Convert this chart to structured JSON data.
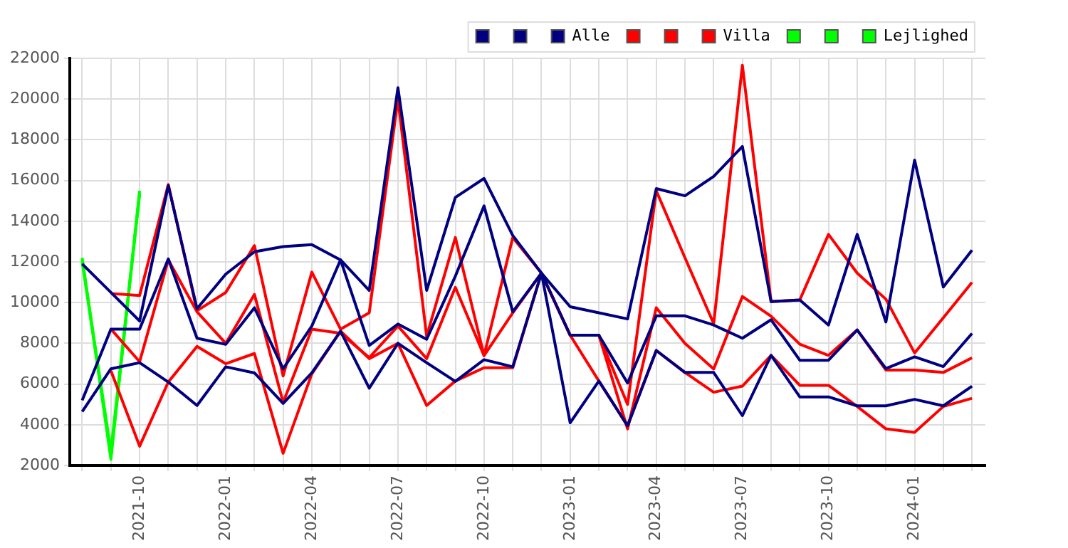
{
  "chart_data": {
    "type": "line",
    "x": [
      "2021-08",
      "2021-09",
      "2021-10",
      "2021-11",
      "2021-12",
      "2022-01",
      "2022-02",
      "2022-03",
      "2022-04",
      "2022-05",
      "2022-06",
      "2022-07",
      "2022-08",
      "2022-09",
      "2022-10",
      "2022-11",
      "2022-12",
      "2023-01",
      "2023-02",
      "2023-03",
      "2023-04",
      "2023-05",
      "2023-06",
      "2023-07",
      "2023-08",
      "2023-09",
      "2023-10",
      "2023-11",
      "2023-12",
      "2024-01",
      "2024-02",
      "2024-03"
    ],
    "series": [
      {
        "color": "#000080",
        "values": [
          11900,
          10500,
          9100,
          15750,
          9700,
          11400,
          12500,
          12750,
          12850,
          12100,
          10600,
          20560,
          10600,
          15170,
          16100,
          13300,
          11450,
          9800,
          9500,
          9200,
          15600,
          15250,
          16200,
          17670,
          10050,
          10130,
          8900,
          13350,
          9050,
          17000,
          10770,
          12580
        ]
      },
      {
        "color": "#000080",
        "values": [
          5200,
          8700,
          8700,
          12150,
          8250,
          7950,
          9750,
          6750,
          8850,
          12100,
          7900,
          8950,
          8200,
          11300,
          14750,
          9550,
          11450,
          8400,
          8400,
          6050,
          9350,
          9350,
          8900,
          8250,
          9160,
          7170,
          7170,
          8660,
          6760,
          7340,
          6860,
          8490
        ]
      },
      {
        "name": "Alle",
        "color": "#000080",
        "values": [
          4650,
          6750,
          7050,
          6100,
          4950,
          6850,
          6550,
          5050,
          6550,
          8600,
          5800,
          8000,
          7050,
          6130,
          7200,
          6850,
          11450,
          4100,
          6150,
          3950,
          7650,
          6570,
          6570,
          4450,
          7410,
          5370,
          5370,
          4930,
          4930,
          5250,
          4930,
          5900
        ]
      },
      {
        "color": "#ff0000",
        "values": [
          null,
          10450,
          10350,
          15800,
          9600,
          10500,
          12800,
          6400,
          11500,
          8700,
          9500,
          20000,
          8350,
          13200,
          7400,
          13200,
          11450,
          8400,
          8400,
          5000,
          15500,
          12200,
          8970,
          21660,
          10050,
          10130,
          13350,
          11450,
          10170,
          7530,
          9260,
          11000
        ]
      },
      {
        "color": "#ff0000",
        "values": [
          null,
          8700,
          7100,
          12100,
          9550,
          8000,
          10400,
          5100,
          8700,
          8500,
          7300,
          8850,
          7250,
          10750,
          7400,
          9500,
          11450,
          8400,
          8400,
          3800,
          9750,
          8000,
          6740,
          10300,
          9330,
          7960,
          7410,
          8660,
          6690,
          6690,
          6570,
          7290
        ]
      },
      {
        "name": "Villa",
        "color": "#ff0000",
        "values": [
          null,
          6650,
          2950,
          6100,
          7850,
          7000,
          7500,
          2600,
          6500,
          8600,
          7250,
          8000,
          4950,
          6150,
          6800,
          6800,
          11450,
          8400,
          6150,
          3950,
          7650,
          6570,
          5600,
          5900,
          7410,
          5940,
          5940,
          4900,
          3800,
          3630,
          4900,
          5300
        ]
      },
      {
        "color": "#00ff00",
        "x": [
          "2021-08",
          "2021-09",
          "2021-10"
        ],
        "values": [
          12200,
          2300,
          15500
        ]
      },
      {
        "color": "#00ff00",
        "x": [
          "2021-08",
          "2021-09",
          "2021-10"
        ],
        "values": [
          12000,
          2500,
          15300
        ]
      },
      {
        "name": "Lejlighed",
        "color": "#00ff00",
        "x": [
          "2021-08",
          "2021-09",
          "2021-10"
        ],
        "values": [
          12100,
          2700,
          15400
        ]
      }
    ],
    "xlim": [
      "2021-07-18",
      "2024-03-15"
    ],
    "xticks": [
      {
        "value": "2021-08",
        "label": null
      },
      {
        "value": "2021-09",
        "label": null
      },
      "2021-10",
      {
        "value": "2021-11",
        "label": null
      },
      {
        "value": "2021-12",
        "label": null
      },
      "2022-01",
      {
        "value": "2022-02",
        "label": null
      },
      {
        "value": "2022-03",
        "label": null
      },
      "2022-04",
      {
        "value": "2022-05",
        "label": null
      },
      {
        "value": "2022-06",
        "label": null
      },
      "2022-07",
      {
        "value": "2022-08",
        "label": null
      },
      {
        "value": "2022-09",
        "label": null
      },
      "2022-10",
      {
        "value": "2022-11",
        "label": null
      },
      {
        "value": "2022-12",
        "label": null
      },
      "2023-01",
      {
        "value": "2023-02",
        "label": null
      },
      {
        "value": "2023-03",
        "label": null
      },
      "2023-04",
      {
        "value": "2023-05",
        "label": null
      },
      {
        "value": "2023-06",
        "label": null
      },
      "2023-07",
      {
        "value": "2023-08",
        "label": null
      },
      {
        "value": "2023-09",
        "label": null
      },
      "2023-10",
      {
        "value": "2023-11",
        "label": null
      },
      {
        "value": "2023-12",
        "label": null
      },
      "2024-01",
      {
        "value": "2024-02",
        "label": null
      },
      {
        "value": "2024-03",
        "label": null
      }
    ],
    "ylim": [
      2000,
      22000
    ],
    "yticks": [
      2000,
      4000,
      6000,
      8000,
      10000,
      12000,
      14000,
      16000,
      18000,
      20000,
      22000
    ],
    "grid": true,
    "legend": "top right",
    "marker": "none",
    "line_style": "solid"
  }
}
